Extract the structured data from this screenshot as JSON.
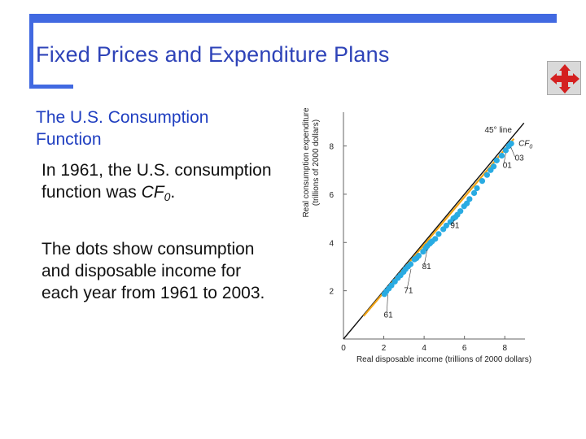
{
  "slide": {
    "title": "Fixed Prices and Expenditure Plans",
    "heading": "The U.S. Consumption Function",
    "para1_prefix": "In 1961, the U.S. consumption function was ",
    "para1_var": "CF",
    "para1_sub": "0",
    "para1_suffix": ".",
    "para2": "The dots show consumption and disposable income for each year from 1961 to 2003.",
    "nav_icon": "four-way-arrows-icon"
  },
  "colors": {
    "frame": "#4169e1",
    "title": "#2e43b8",
    "heading": "#1f3ec0",
    "dots": "#29abe2",
    "cf_line": "#f2a516",
    "line45": "#111111",
    "nav_arrows": "#d42020"
  },
  "chart_data": {
    "type": "scatter",
    "xlabel": "Real disposable income (trillions of 2000 dollars)",
    "ylabel_line1": "Real consumption expenditure",
    "ylabel_line2": "(trillions of 2000 dollars)",
    "xlim": [
      0,
      9
    ],
    "ylim": [
      0,
      9.4
    ],
    "x_ticks": [
      0,
      2,
      4,
      6,
      8
    ],
    "y_ticks": [
      2,
      4,
      6,
      8
    ],
    "line45_label": "45° line",
    "cf_label": "CF",
    "cf_label_sub": "0",
    "series": [
      {
        "values": [
          {
            "x": 2.03,
            "y": 1.86
          },
          {
            "x": 2.12,
            "y": 1.97
          },
          {
            "x": 2.25,
            "y": 2.09
          },
          {
            "x": 2.38,
            "y": 2.22
          },
          {
            "x": 2.55,
            "y": 2.38
          },
          {
            "x": 2.7,
            "y": 2.53
          },
          {
            "x": 2.83,
            "y": 2.64
          },
          {
            "x": 2.98,
            "y": 2.78
          },
          {
            "x": 3.08,
            "y": 2.9
          },
          {
            "x": 3.2,
            "y": 3.0
          },
          {
            "x": 3.33,
            "y": 3.1
          },
          {
            "x": 3.52,
            "y": 3.3
          },
          {
            "x": 3.62,
            "y": 3.35
          },
          {
            "x": 3.73,
            "y": 3.45
          },
          {
            "x": 3.95,
            "y": 3.62
          },
          {
            "x": 4.07,
            "y": 3.75
          },
          {
            "x": 4.15,
            "y": 3.85
          },
          {
            "x": 4.28,
            "y": 3.95
          },
          {
            "x": 4.33,
            "y": 4.0
          },
          {
            "x": 4.4,
            "y": 4.05
          },
          {
            "x": 4.55,
            "y": 4.15
          },
          {
            "x": 4.72,
            "y": 4.35
          },
          {
            "x": 4.95,
            "y": 4.55
          },
          {
            "x": 5.1,
            "y": 4.7
          },
          {
            "x": 5.3,
            "y": 4.85
          },
          {
            "x": 5.45,
            "y": 5.0
          },
          {
            "x": 5.55,
            "y": 5.05
          },
          {
            "x": 5.65,
            "y": 5.15
          },
          {
            "x": 5.8,
            "y": 5.3
          },
          {
            "x": 5.98,
            "y": 5.5
          },
          {
            "x": 6.12,
            "y": 5.62
          },
          {
            "x": 6.25,
            "y": 5.8
          },
          {
            "x": 6.48,
            "y": 6.05
          },
          {
            "x": 6.62,
            "y": 6.25
          },
          {
            "x": 6.88,
            "y": 6.55
          },
          {
            "x": 7.12,
            "y": 6.8
          },
          {
            "x": 7.3,
            "y": 7.0
          },
          {
            "x": 7.45,
            "y": 7.15
          },
          {
            "x": 7.6,
            "y": 7.4
          },
          {
            "x": 7.85,
            "y": 7.6
          },
          {
            "x": 8.05,
            "y": 7.82
          },
          {
            "x": 8.2,
            "y": 8.0
          },
          {
            "x": 8.32,
            "y": 8.1
          }
        ]
      }
    ],
    "cf_line": {
      "x1": 1.0,
      "y1": 0.95,
      "x2": 8.45,
      "y2": 8.3
    },
    "annotations": [
      {
        "text": "61",
        "x": 2.0,
        "y": 0.9
      },
      {
        "text": "71",
        "x": 3.0,
        "y": 1.9
      },
      {
        "text": "81",
        "x": 3.9,
        "y": 2.9
      },
      {
        "text": "91",
        "x": 5.3,
        "y": 4.6
      },
      {
        "text": "01",
        "x": 7.9,
        "y": 7.1
      },
      {
        "text": "03",
        "x": 8.5,
        "y": 7.4
      }
    ]
  }
}
